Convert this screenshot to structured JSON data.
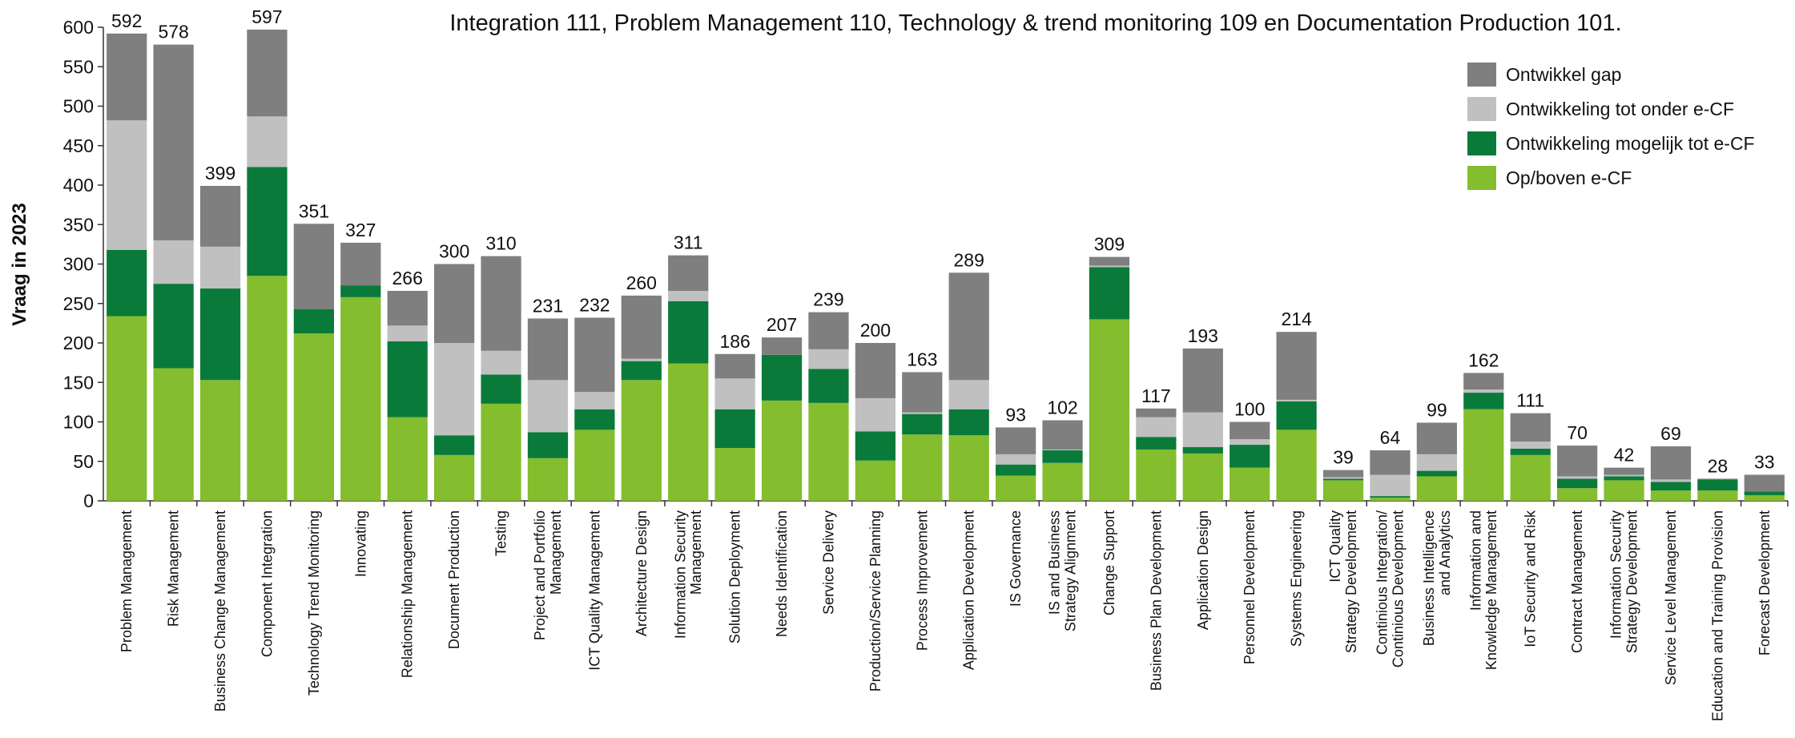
{
  "chart_data": {
    "type": "stacked_bar",
    "note": "Integration 111, Problem Management 110, Technology & trend monitoring 109 en Documentation Production 101.",
    "y_label": "Vraag in 2023",
    "categories": [
      "Problem Management",
      "Risk Management",
      "Business Change Management",
      "Component Integration",
      "Technology Trend Monitoring",
      "Innovating",
      "Relationship Management",
      "Document Production",
      "Testing",
      "Project and Portfolio\nManagement",
      "ICT Quality Management",
      "Architecture Design",
      "Information Security\nManagement",
      "Solution Deployment",
      "Needs Identification",
      "Service Delivery",
      "Production/Service Planning",
      "Process Improvement",
      "Application Development",
      "IS Governance",
      "IS and Business\nStrategy Alignment",
      "Change Support",
      "Business Plan Development",
      "Application Design",
      "Personnel Development",
      "Systems Engineering",
      "ICT Quality\nStrategy Development",
      "Continious Integration/\nContinious Development",
      "Business Intelligence\nand Analytics",
      "Information and\nKnowledge Management",
      "IoT Security and Risk",
      "Contract Management",
      "Information Security\nStrategy Development",
      "Service Level Management",
      "Education and Training Provision",
      "Forecast Development"
    ],
    "series": [
      {
        "name": "Op/boven e-CF",
        "color": "#84bd2d",
        "values": [
          234,
          168,
          153,
          285,
          212,
          258,
          106,
          58,
          123,
          54,
          90,
          153,
          174,
          67,
          127,
          124,
          51,
          84,
          83,
          32,
          48,
          230,
          65,
          60,
          42,
          90,
          26,
          4,
          31,
          116,
          58,
          16,
          26,
          13,
          13,
          7
        ]
      },
      {
        "name": "Ontwikkeling mogelijk tot e-CF",
        "color": "#0a7a3a",
        "values": [
          84,
          107,
          116,
          138,
          31,
          15,
          96,
          25,
          37,
          33,
          26,
          24,
          79,
          49,
          58,
          43,
          37,
          26,
          33,
          14,
          16,
          66,
          16,
          8,
          29,
          36,
          2,
          2,
          7,
          21,
          8,
          12,
          5,
          11,
          14,
          5
        ]
      },
      {
        "name": "Ontwikkeling tot onder e-CF",
        "color": "#c0c0c0",
        "values": [
          164,
          55,
          53,
          64,
          0,
          0,
          20,
          117,
          30,
          66,
          22,
          3,
          13,
          39,
          0,
          25,
          42,
          2,
          37,
          13,
          1,
          2,
          25,
          44,
          7,
          2,
          2,
          27,
          21,
          4,
          9,
          3,
          2,
          3,
          0,
          0
        ]
      },
      {
        "name": "Ontwikkel gap",
        "color": "#7f7f7f",
        "values": [
          110,
          248,
          77,
          110,
          108,
          54,
          44,
          100,
          120,
          78,
          94,
          80,
          45,
          31,
          22,
          47,
          70,
          51,
          136,
          34,
          37,
          11,
          11,
          81,
          22,
          86,
          9,
          31,
          40,
          21,
          36,
          39,
          9,
          42,
          1,
          21
        ]
      }
    ],
    "totals": [
      592,
      578,
      399,
      597,
      351,
      327,
      266,
      300,
      310,
      231,
      232,
      260,
      311,
      186,
      207,
      239,
      200,
      163,
      289,
      93,
      102,
      309,
      117,
      193,
      100,
      214,
      39,
      64,
      99,
      162,
      111,
      70,
      42,
      69,
      28,
      33
    ],
    "ylim": [
      0,
      600
    ],
    "yticks": [
      0,
      50,
      100,
      150,
      200,
      250,
      300,
      350,
      400,
      450,
      500,
      550,
      600
    ],
    "legend": "top-right"
  }
}
